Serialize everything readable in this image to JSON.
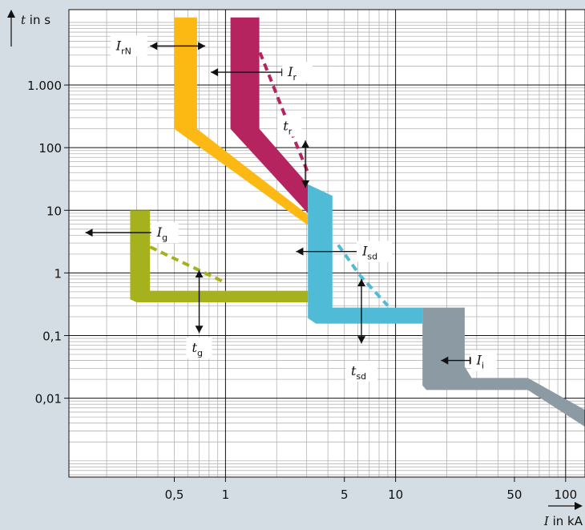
{
  "chart_data": {
    "type": "line",
    "xscale": "log",
    "yscale": "log",
    "xlim": [
      0.12,
      130
    ],
    "ylim": [
      0.00055,
      16000
    ],
    "y_axis_label": {
      "var": "t",
      "text": " in s"
    },
    "x_axis_label": {
      "var": "I",
      "text": " in kA"
    },
    "x_tick_labels": [
      {
        "value": 0.5,
        "label": "0,5"
      },
      {
        "value": 1,
        "label": "1"
      },
      {
        "value": 5,
        "label": "5"
      },
      {
        "value": 10,
        "label": "10"
      },
      {
        "value": 50,
        "label": "50"
      },
      {
        "value": 100,
        "label": "100"
      }
    ],
    "y_tick_labels": [
      {
        "value": 1000,
        "label": "1.000"
      },
      {
        "value": 100,
        "label": "100"
      },
      {
        "value": 10,
        "label": "10"
      },
      {
        "value": 1,
        "label": "1"
      },
      {
        "value": 0.1,
        "label": "0,1"
      },
      {
        "value": 0.01,
        "label": "0,01"
      }
    ],
    "grid": true,
    "colors": {
      "grid_fine": "#b4b4b4",
      "grid_major": "#111111",
      "orange": "#fdb913",
      "magenta": "#b5245f",
      "cyan": "#4fbbd6",
      "olive": "#a5b21e",
      "gray": "#8c9aa3"
    },
    "bands": [
      {
        "name": "orange-band",
        "color": "#fdb913",
        "points": [
          [
            0.5,
            12000
          ],
          [
            0.68,
            12000
          ],
          [
            0.68,
            200
          ],
          [
            3.05,
            8.5
          ],
          [
            3.05,
            5.8
          ],
          [
            0.5,
            200
          ]
        ]
      },
      {
        "name": "magenta-band",
        "color": "#b5245f",
        "points": [
          [
            1.07,
            12000
          ],
          [
            1.58,
            12000
          ],
          [
            1.58,
            200
          ],
          [
            3.05,
            26
          ],
          [
            3.05,
            9
          ],
          [
            1.07,
            200
          ]
        ]
      },
      {
        "name": "cyan-band",
        "color": "#4fbbd6",
        "points": [
          [
            3.05,
            26
          ],
          [
            3.05,
            0.19
          ],
          [
            3.4,
            0.155
          ],
          [
            14.4,
            0.155
          ],
          [
            14.4,
            0.28
          ],
          [
            4.25,
            0.28
          ],
          [
            4.25,
            17
          ]
        ]
      },
      {
        "name": "olive-band",
        "color": "#a5b21e",
        "points": [
          [
            0.275,
            10
          ],
          [
            0.36,
            10
          ],
          [
            0.36,
            0.52
          ],
          [
            3.05,
            0.52
          ],
          [
            3.05,
            0.34
          ],
          [
            0.3,
            0.34
          ],
          [
            0.275,
            0.38
          ]
        ]
      },
      {
        "name": "gray-band",
        "color": "#8c9aa3",
        "points": [
          [
            14.4,
            0.28
          ],
          [
            25.5,
            0.28
          ],
          [
            25.5,
            0.032
          ],
          [
            28,
            0.021
          ],
          [
            60,
            0.021
          ],
          [
            130,
            0.0065
          ],
          [
            130,
            0.0035
          ],
          [
            60,
            0.0135
          ],
          [
            15.2,
            0.0135
          ],
          [
            14.4,
            0.016
          ]
        ]
      }
    ],
    "dashed_lines": [
      {
        "name": "ir-dash",
        "color": "#b5245f",
        "points": [
          [
            1.5,
            5000
          ],
          [
            1.9,
            1000
          ],
          [
            2.5,
            150
          ],
          [
            3.05,
            40
          ]
        ]
      },
      {
        "name": "ig-dash",
        "color": "#a5b21e",
        "points": [
          [
            0.36,
            2.6
          ],
          [
            0.55,
            1.5
          ],
          [
            1.0,
            0.7
          ]
        ]
      },
      {
        "name": "isd-dash",
        "color": "#4fbbd6",
        "points": [
          [
            4.6,
            2.8
          ],
          [
            6.2,
            0.9
          ],
          [
            9.0,
            0.3
          ]
        ]
      }
    ],
    "annotations": [
      {
        "name": "irn-label",
        "symbol": "I",
        "sub": "rN",
        "x": 0.27,
        "y": 4200,
        "w": 46
      },
      {
        "name": "ir-label",
        "symbol": "I",
        "sub": "r",
        "x": 2.65,
        "y": 1600,
        "w": 38
      },
      {
        "name": "tr-label",
        "symbol": "t",
        "sub": "r",
        "x": 2.38,
        "y": 220,
        "w": 30
      },
      {
        "name": "ig-label",
        "symbol": "I",
        "sub": "g",
        "x": 0.44,
        "y": 4.4,
        "w": 34
      },
      {
        "name": "isd-label",
        "symbol": "I",
        "sub": "sd",
        "x": 7.5,
        "y": 2.2,
        "w": 44
      },
      {
        "name": "tg-label",
        "symbol": "t",
        "sub": "g",
        "x": 0.7,
        "y": 0.063,
        "w": 32
      },
      {
        "name": "tsd-label",
        "symbol": "t",
        "sub": "sd",
        "x": 6.3,
        "y": 0.027,
        "w": 40
      },
      {
        "name": "ii-label",
        "symbol": "I",
        "sub": "i",
        "x": 33,
        "y": 0.04,
        "w": 32
      }
    ],
    "arrows": [
      {
        "name": "irn-arrow",
        "dir": "both",
        "from": [
          0.36,
          4200
        ],
        "to": [
          0.76,
          4200
        ]
      },
      {
        "name": "ir-arrow",
        "dir": "both",
        "from": [
          0.82,
          1600
        ],
        "to": [
          2.35,
          1600
        ]
      },
      {
        "name": "tr-arrow",
        "dir": "both",
        "from": [
          2.95,
          130
        ],
        "to": [
          2.95,
          23
        ]
      },
      {
        "name": "ig-arrow",
        "dir": "both",
        "from": [
          0.15,
          4.4
        ],
        "to": [
          0.41,
          4.4
        ]
      },
      {
        "name": "isd-arrow",
        "dir": "both",
        "from": [
          2.6,
          2.2
        ],
        "to": [
          6.7,
          2.2
        ]
      },
      {
        "name": "tg-arrow",
        "dir": "both",
        "from": [
          0.7,
          1.1
        ],
        "to": [
          0.7,
          0.11
        ]
      },
      {
        "name": "tsd-arrow",
        "dir": "both",
        "from": [
          6.3,
          0.8
        ],
        "to": [
          6.3,
          0.075
        ]
      },
      {
        "name": "ii-arrow",
        "dir": "both",
        "from": [
          18.5,
          0.04
        ],
        "to": [
          30,
          0.04
        ]
      }
    ]
  }
}
